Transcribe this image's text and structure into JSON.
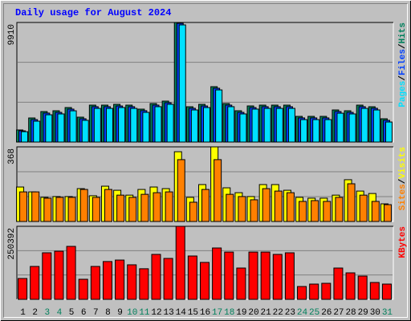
{
  "title": "Daily usage for August 2024",
  "x_axis": {
    "categories": [
      "1",
      "2",
      "3",
      "4",
      "5",
      "6",
      "7",
      "8",
      "9",
      "10",
      "11",
      "12",
      "13",
      "14",
      "15",
      "16",
      "17",
      "18",
      "19",
      "20",
      "21",
      "22",
      "23",
      "24",
      "25",
      "26",
      "27",
      "28",
      "29",
      "30",
      "31"
    ],
    "colors": [
      "#000000",
      "#000000",
      "#00805c",
      "#00805c",
      "#000000",
      "#000000",
      "#000000",
      "#000000",
      "#000000",
      "#00805c",
      "#00805c",
      "#000000",
      "#000000",
      "#000000",
      "#000000",
      "#000000",
      "#00805c",
      "#00805c",
      "#000000",
      "#000000",
      "#000000",
      "#000000",
      "#000000",
      "#00805c",
      "#00805c",
      "#000000",
      "#000000",
      "#000000",
      "#000000",
      "#000000",
      "#00805c"
    ]
  },
  "chart_data": [
    {
      "type": "bar",
      "legend_separator": "/",
      "ylim": [
        0,
        9910
      ],
      "yticks": [
        9910
      ],
      "series": [
        {
          "name": "Hits",
          "color": "#00805c",
          "values": [
            1000,
            1995,
            2527,
            2594,
            2860,
            2062,
            3059,
            3059,
            3126,
            3059,
            2727,
            3192,
            3392,
            9910,
            2926,
            3126,
            4589,
            3192,
            2594,
            2993,
            3059,
            3059,
            3059,
            2128,
            2128,
            2128,
            2660,
            2594,
            3059,
            2926,
            1929
          ]
        },
        {
          "name": "Files",
          "color": "#0040ff",
          "values": [
            930,
            1860,
            2400,
            2460,
            2730,
            1930,
            2930,
            2930,
            2990,
            2930,
            2600,
            3060,
            3260,
            9840,
            2800,
            2990,
            4460,
            3060,
            2460,
            2860,
            2930,
            2930,
            2930,
            2000,
            2000,
            2000,
            2530,
            2460,
            2930,
            2800,
            1800
          ]
        },
        {
          "name": "Pages",
          "color": "#00e0ff",
          "values": [
            860,
            1730,
            2260,
            2330,
            2590,
            1800,
            2790,
            2790,
            2860,
            2790,
            2460,
            2930,
            3130,
            9710,
            2660,
            2860,
            4320,
            2930,
            2330,
            2730,
            2790,
            2790,
            2790,
            1860,
            1860,
            1860,
            2390,
            2330,
            2790,
            2660,
            1660
          ]
        }
      ]
    },
    {
      "type": "bar",
      "legend_separator": "/",
      "ylim": [
        0,
        368
      ],
      "yticks": [
        368
      ],
      "series": [
        {
          "name": "Visits",
          "color": "#ffff00",
          "values": [
            170,
            146,
            119,
            123,
            123,
            162,
            127,
            174,
            154,
            130,
            158,
            170,
            162,
            344,
            119,
            182,
            368,
            166,
            142,
            123,
            182,
            182,
            154,
            119,
            115,
            115,
            130,
            206,
            150,
            138,
            87
          ]
        },
        {
          "name": "Sites",
          "color": "#ff8000",
          "values": [
            146,
            146,
            115,
            119,
            119,
            158,
            119,
            158,
            130,
            119,
            134,
            142,
            146,
            305,
            95,
            158,
            305,
            134,
            123,
            107,
            162,
            150,
            142,
            99,
            103,
            99,
            119,
            186,
            130,
            99,
            83
          ]
        }
      ]
    },
    {
      "type": "bar",
      "ylim": [
        0,
        250392
      ],
      "yticks": [
        250392
      ],
      "series": [
        {
          "name": "KBytes",
          "color": "#ff0000",
          "values": [
            71500,
            112800,
            159600,
            165000,
            181600,
            68800,
            112800,
            129600,
            134700,
            118400,
            104900,
            154100,
            140300,
            250392,
            148600,
            126600,
            176100,
            162100,
            107300,
            162100,
            162100,
            154100,
            159600,
            44000,
            52300,
            55000,
            107300,
            90800,
            79800,
            57800,
            52300
          ]
        }
      ]
    }
  ]
}
